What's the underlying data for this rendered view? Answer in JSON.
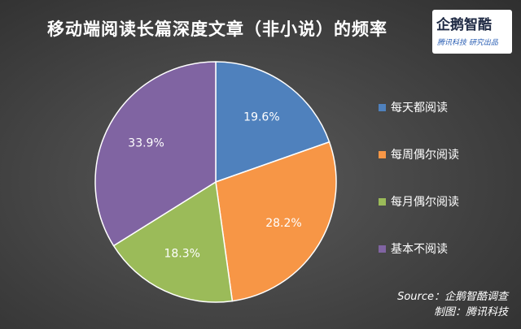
{
  "header": {
    "title": "移动端阅读长篇深度文章（非小说）的频率"
  },
  "logo": {
    "mark": "企鹅智酷",
    "sub": "腾讯科技  研究出品"
  },
  "chart_data": {
    "type": "pie",
    "title": "移动端阅读长篇深度文章（非小说）的频率",
    "slices": [
      {
        "label": "每天都阅读",
        "value": 19.6,
        "value_label": "19.6%",
        "color": "#4f81bd"
      },
      {
        "label": "每周偶尔阅读",
        "value": 28.2,
        "value_label": "28.2%",
        "color": "#f79646"
      },
      {
        "label": "每月偶尔阅读",
        "value": 18.3,
        "value_label": "18.3%",
        "color": "#9bbb59"
      },
      {
        "label": "基本不阅读",
        "value": 33.9,
        "value_label": "33.9%",
        "color": "#8064a2"
      }
    ],
    "legend_position": "right",
    "start": "top",
    "direction": "clockwise",
    "label_color": "#ffffff"
  },
  "footer": {
    "source": "Source：企鹅智酷调查",
    "credit": "制图：腾讯科技"
  }
}
